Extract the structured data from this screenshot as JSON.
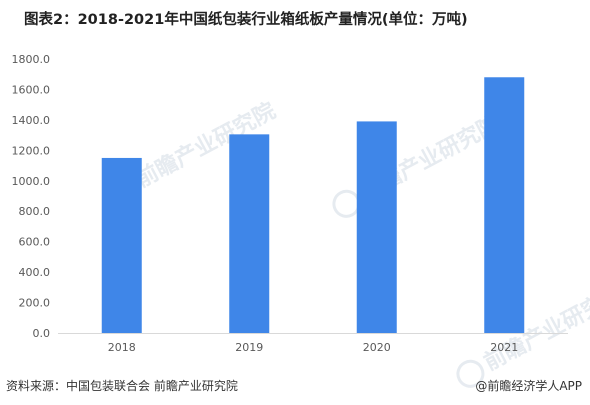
{
  "title": "图表2：2018-2021年中国纸包装行业箱纸板产量情况(单位：万吨)",
  "footer": {
    "source": "资料来源：中国包装联合会 前瞻产业研究院",
    "brand": "@前瞻经济学人APP"
  },
  "watermark": "前瞻产业研究院",
  "colors": {
    "bar": "#3f86e8",
    "axis": "#d9d9d9",
    "text": "#595959"
  },
  "chart_data": {
    "type": "bar",
    "categories": [
      "2018",
      "2019",
      "2020",
      "2021"
    ],
    "values": [
      1150,
      1305,
      1390,
      1680
    ],
    "ylim": [
      0,
      1800
    ],
    "yticks": [
      "0.0",
      "200.0",
      "400.0",
      "600.0",
      "800.0",
      "1000.0",
      "1200.0",
      "1400.0",
      "1600.0",
      "1800.0"
    ],
    "grid": false,
    "legend": "none"
  }
}
